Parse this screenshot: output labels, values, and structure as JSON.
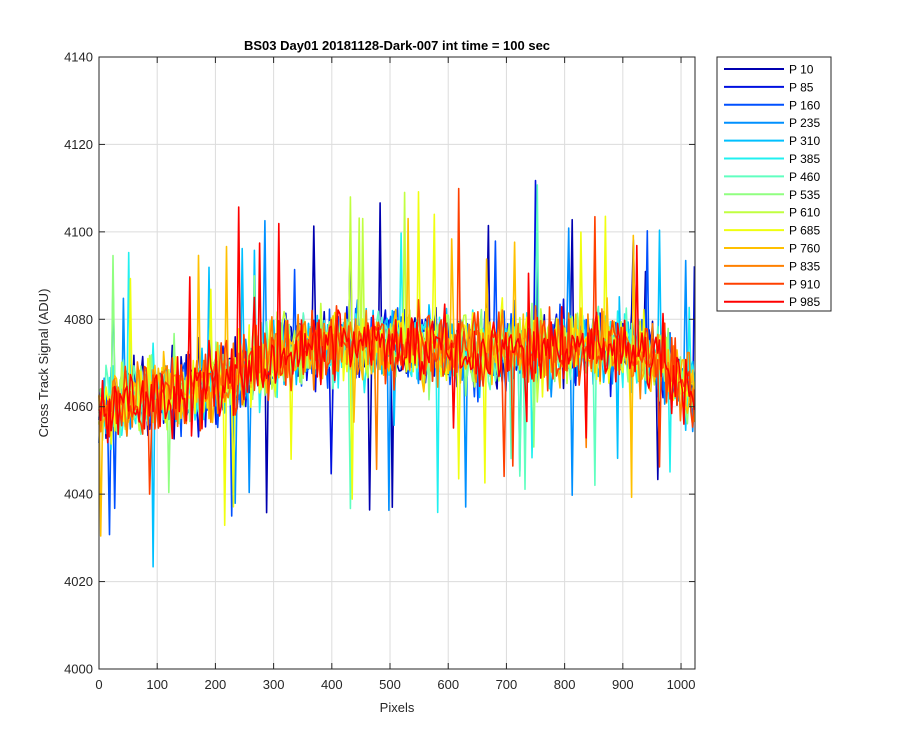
{
  "chart_data": {
    "type": "line",
    "title": "BS03 Day01 20181128-Dark-007 int time = 100 sec",
    "xlabel": "Pixels",
    "ylabel": "Cross Track Signal (ADU)",
    "xlim": [
      0,
      1024
    ],
    "ylim": [
      4000,
      4140
    ],
    "xticks": [
      0,
      100,
      200,
      300,
      400,
      500,
      600,
      700,
      800,
      900,
      1000
    ],
    "yticks": [
      4000,
      4020,
      4040,
      4060,
      4080,
      4100,
      4120,
      4140
    ],
    "grid": true,
    "legend_position": "outside-top-right",
    "profile_note": "approximate mean level of the noisy traces across pixels",
    "mean_profile": {
      "x": [
        0,
        20,
        50,
        100,
        150,
        200,
        250,
        300,
        350,
        400,
        450,
        500,
        550,
        600,
        650,
        700,
        750,
        800,
        850,
        900,
        950,
        980,
        1000,
        1024
      ],
      "mean": [
        4058,
        4060,
        4062,
        4063,
        4064,
        4065,
        4068,
        4071,
        4073,
        4074,
        4074,
        4074,
        4074,
        4073,
        4073,
        4073,
        4073,
        4074,
        4074,
        4073,
        4071,
        4069,
        4066,
        4062
      ]
    },
    "noise_range": 14,
    "series": [
      {
        "name": "P 10",
        "color": "#0000b0"
      },
      {
        "name": "P 85",
        "color": "#0010e0"
      },
      {
        "name": "P 160",
        "color": "#0050ff"
      },
      {
        "name": "P 235",
        "color": "#0090ff"
      },
      {
        "name": "P 310",
        "color": "#00c0ff"
      },
      {
        "name": "P 385",
        "color": "#20f0f0"
      },
      {
        "name": "P 460",
        "color": "#60ffc0"
      },
      {
        "name": "P 535",
        "color": "#90ff80"
      },
      {
        "name": "P 610",
        "color": "#c0ff40"
      },
      {
        "name": "P 685",
        "color": "#f0ff10"
      },
      {
        "name": "P 760",
        "color": "#ffc000"
      },
      {
        "name": "P 835",
        "color": "#ff8000"
      },
      {
        "name": "P 910",
        "color": "#ff4000"
      },
      {
        "name": "P 985",
        "color": "#ff0000"
      }
    ]
  }
}
